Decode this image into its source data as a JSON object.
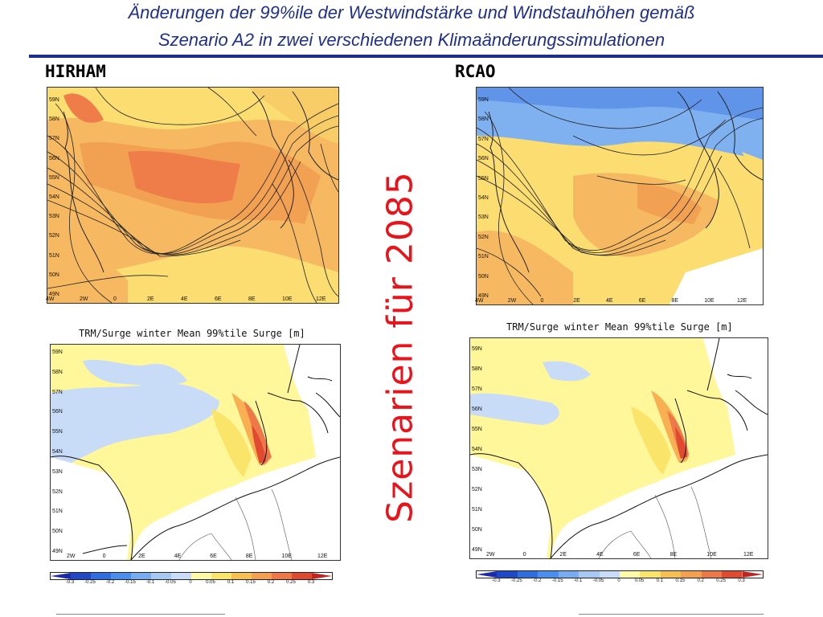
{
  "slide": {
    "title_line1": "Änderungen der 99%ile der Westwindstärke und Windstauhöhen gemäß",
    "title_line2": "Szenario A2 in zwei verschiedenen Klimaänderungssimulationen",
    "side_text": "Szenarien für 2085"
  },
  "panels": {
    "left_model": "HIRHAM",
    "right_model": "RCAO",
    "surge_title_left": "TRM/Surge winter Mean 99%tile Surge [m]",
    "surge_title_right": "TRM/Surge winter Mean 99%tile Surge [m]"
  },
  "axes": {
    "wind_lats": [
      "59N",
      "58N",
      "57N",
      "56N",
      "55N",
      "54N",
      "53N",
      "52N",
      "51N",
      "50N",
      "49N"
    ],
    "wind_lons": [
      "4W",
      "2W",
      "0",
      "2E",
      "4E",
      "6E",
      "8E",
      "10E",
      "12E"
    ],
    "surge_lats": [
      "59N",
      "58N",
      "57N",
      "56N",
      "55N",
      "54N",
      "53N",
      "52N",
      "51N",
      "50N",
      "49N"
    ],
    "surge_lons": [
      "2W",
      "0",
      "2E",
      "4E",
      "6E",
      "8E",
      "10E",
      "12E"
    ]
  },
  "colorbar": {
    "labels": [
      "-0.3",
      "-0.25",
      "-0.2",
      "-0.15",
      "-0.1",
      "-0.05",
      "0",
      "0.05",
      "0.1",
      "0.15",
      "0.2",
      "0.25",
      "0.3"
    ],
    "colors": [
      "#1a2aa8",
      "#1e48c8",
      "#2e6ee0",
      "#4a8ef0",
      "#78acf0",
      "#a8c8f4",
      "#c8dcf8",
      "#fff9a8",
      "#fbe46a",
      "#f8c050",
      "#f4a050",
      "#ee7848",
      "#e04a30",
      "#c02420"
    ]
  },
  "colors": {
    "title_blue": "#1f2f8f",
    "scenario_red": "#e8141c"
  }
}
